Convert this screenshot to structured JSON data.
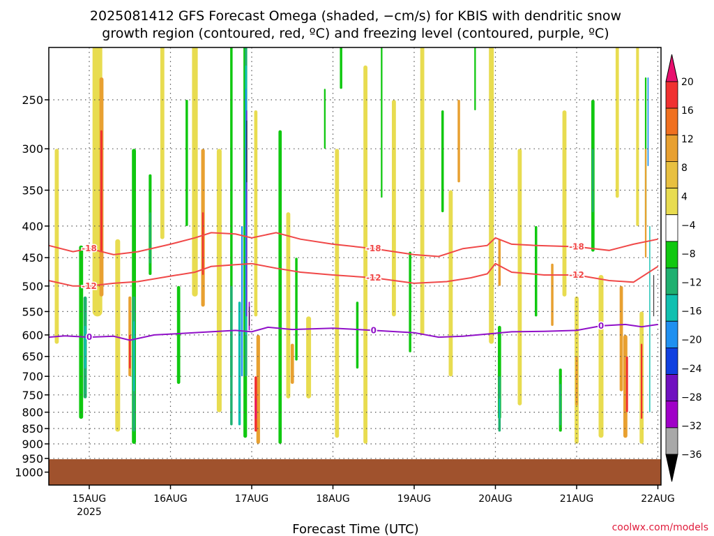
{
  "title_line1": "2025081412 GFS Forecast Omega (shaded, −cm/s) for KBIS with dendritic snow",
  "title_line2": "growth region (contoured, red, ºC) and freezing level (contoured, purple, ºC)",
  "xlabel": "Forecast Time (UTC)",
  "credit": "coolwx.com/models",
  "year_label": "2025",
  "chart_data": {
    "type": "heatmap",
    "y_axis": {
      "scale": "log",
      "inverted": true,
      "range": [
        200,
        1050
      ],
      "ticks": [
        250,
        300,
        350,
        400,
        450,
        500,
        550,
        600,
        650,
        700,
        750,
        800,
        850,
        900,
        950,
        1000
      ]
    },
    "x_axis": {
      "range_days": [
        "2025-08-14T12",
        "2025-08-22T00"
      ],
      "ticks": [
        "15AUG",
        "16AUG",
        "17AUG",
        "18AUG",
        "19AUG",
        "20AUG",
        "21AUG",
        "22AUG"
      ]
    },
    "colorbar": {
      "labels": [
        "20",
        "16",
        "12",
        "8",
        "4",
        "−4",
        "−8",
        "−12",
        "−16",
        "−20",
        "−24",
        "−28",
        "−32",
        "−36"
      ],
      "colors": [
        "#e8106e",
        "#f03030",
        "#f07020",
        "#e8a030",
        "#e8c040",
        "#e8dc50",
        "#ffffff",
        "#10c810",
        "#20b070",
        "#10c0b0",
        "#2090f0",
        "#1040e0",
        "#7010c0",
        "#a000c8",
        "#a8a8a8",
        "#000000"
      ]
    },
    "contours": [
      {
        "label": "-18",
        "color": "#f04848",
        "points": [
          [
            14.5,
            430
          ],
          [
            14.8,
            440
          ],
          [
            15.0,
            435
          ],
          [
            15.3,
            445
          ],
          [
            15.6,
            440
          ],
          [
            16.0,
            428
          ],
          [
            16.3,
            418
          ],
          [
            16.5,
            410
          ],
          [
            16.8,
            412
          ],
          [
            17.0,
            418
          ],
          [
            17.3,
            410
          ],
          [
            17.6,
            420
          ],
          [
            18.0,
            428
          ],
          [
            18.5,
            435
          ],
          [
            19.0,
            445
          ],
          [
            19.3,
            448
          ],
          [
            19.6,
            435
          ],
          [
            19.9,
            430
          ],
          [
            20.0,
            418
          ],
          [
            20.2,
            428
          ],
          [
            20.5,
            430
          ],
          [
            21.0,
            432
          ],
          [
            21.4,
            438
          ],
          [
            21.7,
            428
          ],
          [
            22.0,
            420
          ]
        ]
      },
      {
        "label": "-12",
        "color": "#f04848",
        "points": [
          [
            14.5,
            490
          ],
          [
            14.8,
            500
          ],
          [
            15.0,
            500
          ],
          [
            15.3,
            495
          ],
          [
            15.6,
            492
          ],
          [
            16.0,
            482
          ],
          [
            16.3,
            475
          ],
          [
            16.5,
            465
          ],
          [
            16.8,
            462
          ],
          [
            17.0,
            460
          ],
          [
            17.3,
            468
          ],
          [
            17.6,
            475
          ],
          [
            18.0,
            480
          ],
          [
            18.5,
            485
          ],
          [
            19.0,
            495
          ],
          [
            19.4,
            492
          ],
          [
            19.7,
            485
          ],
          [
            19.9,
            478
          ],
          [
            20.0,
            460
          ],
          [
            20.2,
            475
          ],
          [
            20.6,
            480
          ],
          [
            21.0,
            480
          ],
          [
            21.4,
            490
          ],
          [
            21.7,
            493
          ],
          [
            22.0,
            465
          ]
        ]
      },
      {
        "label": "0",
        "color": "#9010c8",
        "points": [
          [
            14.5,
            605
          ],
          [
            14.7,
            602
          ],
          [
            15.0,
            605
          ],
          [
            15.3,
            603
          ],
          [
            15.5,
            612
          ],
          [
            15.8,
            600
          ],
          [
            16.1,
            597
          ],
          [
            16.4,
            594
          ],
          [
            16.8,
            590
          ],
          [
            17.0,
            593
          ],
          [
            17.2,
            583
          ],
          [
            17.5,
            588
          ],
          [
            18.0,
            585
          ],
          [
            18.5,
            590
          ],
          [
            19.0,
            595
          ],
          [
            19.3,
            605
          ],
          [
            19.6,
            603
          ],
          [
            19.9,
            598
          ],
          [
            20.2,
            593
          ],
          [
            20.6,
            592
          ],
          [
            21.0,
            590
          ],
          [
            21.3,
            580
          ],
          [
            21.6,
            577
          ],
          [
            21.8,
            582
          ],
          [
            22.0,
            577
          ]
        ]
      }
    ]
  }
}
